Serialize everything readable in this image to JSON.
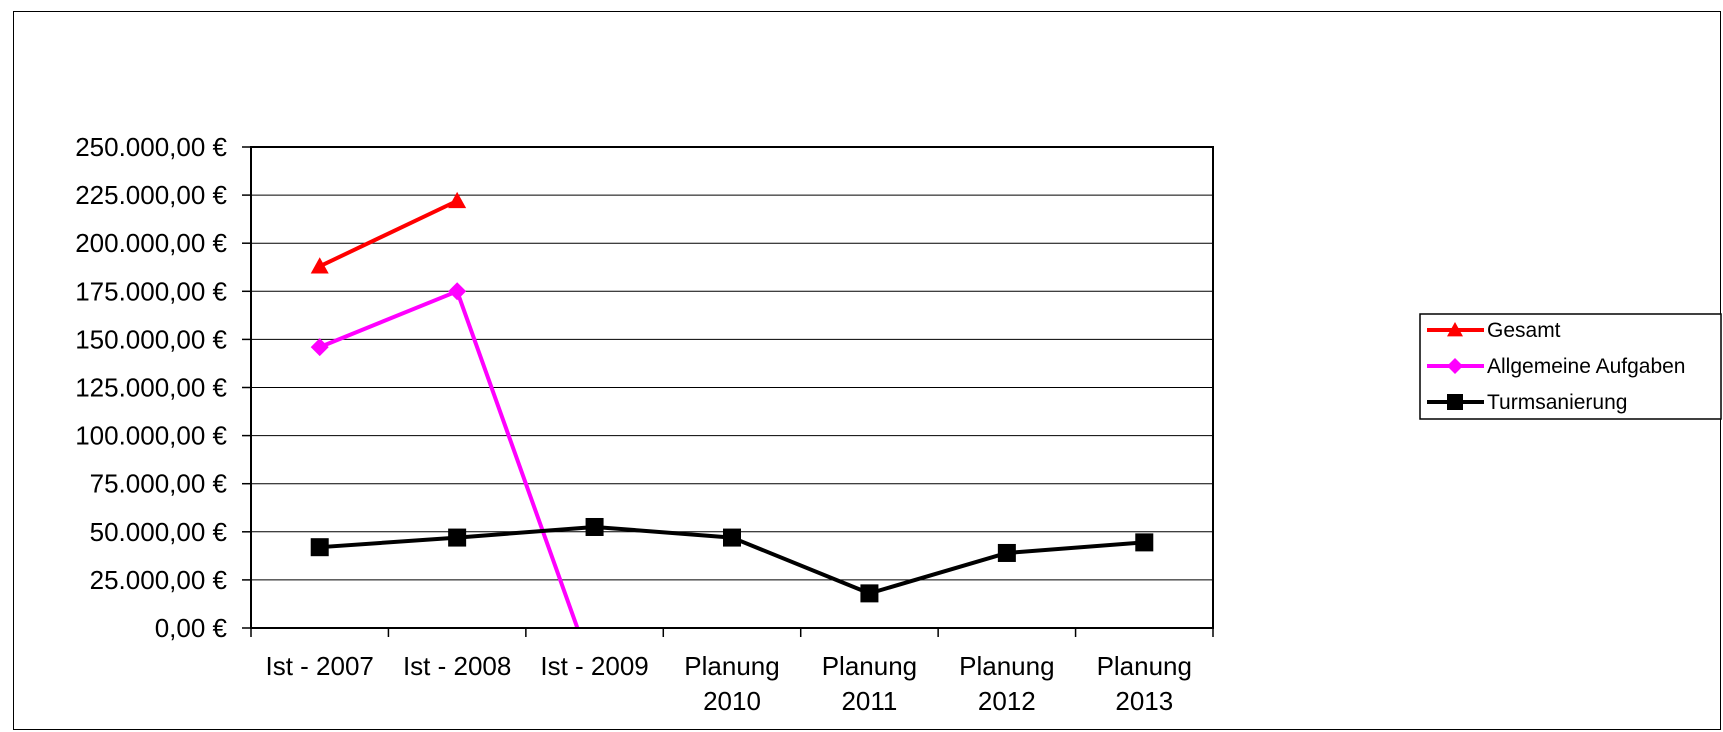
{
  "chart_data": {
    "type": "line",
    "title": "",
    "xlabel": "",
    "ylabel": "",
    "categories": [
      [
        "Ist - 2007"
      ],
      [
        "Ist - 2008"
      ],
      [
        "Ist - 2009"
      ],
      [
        "Planung",
        "2010"
      ],
      [
        "Planung",
        "2011"
      ],
      [
        "Planung",
        "2012"
      ],
      [
        "Planung",
        "2013"
      ]
    ],
    "ylim": [
      0,
      250000
    ],
    "yticks": [
      0,
      25000,
      50000,
      75000,
      100000,
      125000,
      150000,
      175000,
      200000,
      225000,
      250000
    ],
    "ytick_labels": [
      "0,00 €",
      "25.000,00 €",
      "50.000,00 €",
      "75.000,00 €",
      "100.000,00 €",
      "125.000,00 €",
      "150.000,00 €",
      "175.000,00 €",
      "200.000,00 €",
      "225.000,00 €",
      "250.000,00 €"
    ],
    "grid": true,
    "legend_position": "right",
    "series": [
      {
        "name": "Gesamt",
        "color": "#ff0000",
        "marker": "triangle",
        "values": [
          188000,
          222000,
          null,
          null,
          null,
          null,
          null
        ]
      },
      {
        "name": "Allgemeine Aufgaben",
        "color": "#ff00ff",
        "marker": "diamond",
        "values": [
          146000,
          175000,
          -25000,
          null,
          null,
          null,
          null
        ]
      },
      {
        "name": "Turmsanierung",
        "color": "#000000",
        "marker": "square",
        "values": [
          42000,
          47000,
          52500,
          47000,
          18000,
          39000,
          44500
        ]
      }
    ]
  }
}
